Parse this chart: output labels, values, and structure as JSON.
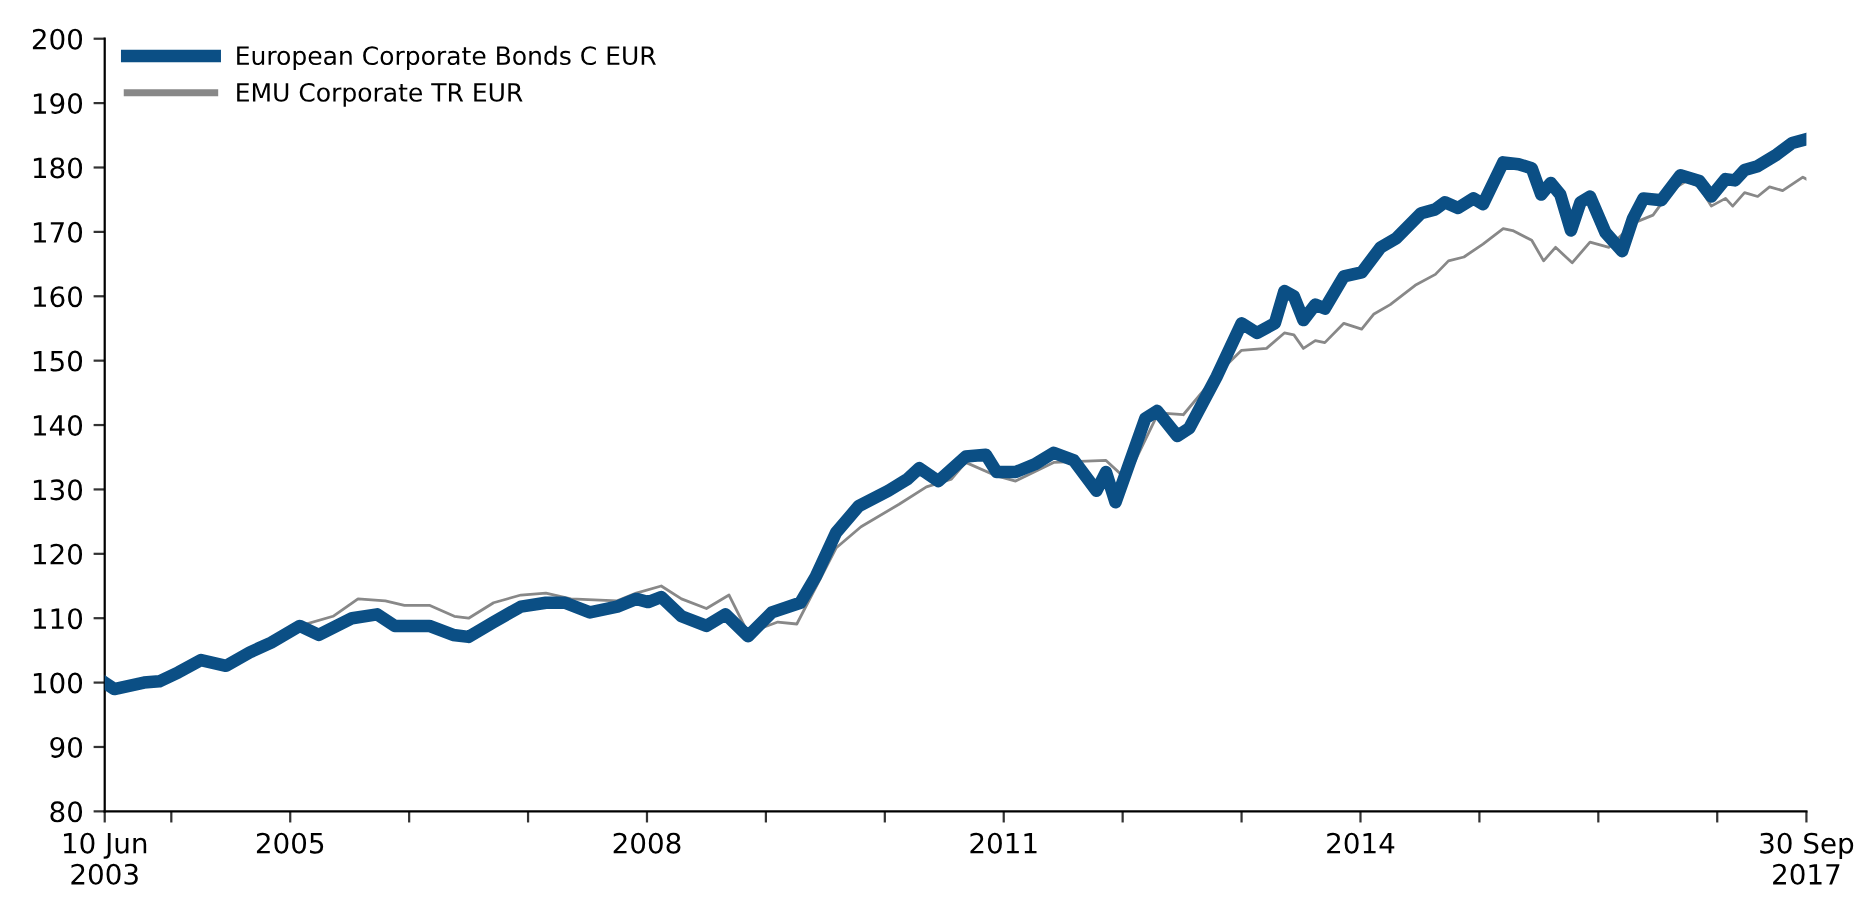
{
  "chart_data": {
    "type": "line",
    "ylim": [
      80,
      200
    ],
    "yticks": [
      80,
      90,
      100,
      110,
      120,
      130,
      140,
      150,
      160,
      170,
      180,
      190,
      200
    ],
    "xlim": [
      2003.44,
      2017.75
    ],
    "xticks": [
      {
        "value": 2003.44,
        "label": "10 Jun\n2003"
      },
      {
        "value": 2004,
        "label": null
      },
      {
        "value": 2005,
        "label": "2005"
      },
      {
        "value": 2006,
        "label": null
      },
      {
        "value": 2007,
        "label": null
      },
      {
        "value": 2008,
        "label": "2008"
      },
      {
        "value": 2009,
        "label": null
      },
      {
        "value": 2010,
        "label": null
      },
      {
        "value": 2011,
        "label": "2011"
      },
      {
        "value": 2012,
        "label": null
      },
      {
        "value": 2013,
        "label": null
      },
      {
        "value": 2014,
        "label": "2014"
      },
      {
        "value": 2015,
        "label": null
      },
      {
        "value": 2016,
        "label": null
      },
      {
        "value": 2017,
        "label": null
      },
      {
        "value": 2017.75,
        "label": "30 Sep\n2017"
      }
    ],
    "grid": false,
    "legend": "top left",
    "marker": "none",
    "line_style": "solid",
    "series": [
      {
        "name": "European Corporate Bonds C EUR",
        "color": "#0b4f85",
        "x": [
          2003.44,
          2003.52,
          2003.77,
          2003.9,
          2004.06,
          2004.25,
          2004.46,
          2004.66,
          2004.84,
          2005.08,
          2005.24,
          2005.52,
          2005.73,
          2005.88,
          2006.17,
          2006.37,
          2006.5,
          2006.71,
          2006.94,
          2007.15,
          2007.31,
          2007.52,
          2007.75,
          2007.91,
          2008.01,
          2008.12,
          2008.29,
          2008.5,
          2008.66,
          2008.85,
          2009.05,
          2009.29,
          2009.42,
          2009.59,
          2009.78,
          2010.03,
          2010.19,
          2010.29,
          2010.45,
          2010.68,
          2010.85,
          2010.94,
          2011.1,
          2011.26,
          2011.42,
          2011.59,
          2011.78,
          2011.86,
          2011.94,
          2012.19,
          2012.29,
          2012.46,
          2012.56,
          2012.79,
          2013.0,
          2013.13,
          2013.28,
          2013.36,
          2013.44,
          2013.52,
          2013.62,
          2013.7,
          2013.86,
          2014.01,
          2014.17,
          2014.3,
          2014.51,
          2014.63,
          2014.71,
          2014.82,
          2014.95,
          2015.03,
          2015.2,
          2015.33,
          2015.44,
          2015.52,
          2015.6,
          2015.68,
          2015.77,
          2015.85,
          2015.93,
          2016.06,
          2016.2,
          2016.29,
          2016.38,
          2016.53,
          2016.69,
          2016.85,
          2016.95,
          2017.07,
          2017.15,
          2017.23,
          2017.34,
          2017.5,
          2017.63,
          2017.75
        ],
        "values": [
          100,
          99,
          100,
          100.2,
          101.6,
          103.5,
          102.6,
          104.7,
          106.2,
          108.8,
          107.4,
          110,
          110.6,
          108.8,
          108.8,
          107.4,
          107.1,
          109.4,
          111.8,
          112.4,
          112.4,
          110.9,
          111.8,
          113,
          112.5,
          113.3,
          110.3,
          108.8,
          110.6,
          107.2,
          110.9,
          112.4,
          116.5,
          123.3,
          127.4,
          129.8,
          131.6,
          133.3,
          131.3,
          135.1,
          135.4,
          132.7,
          132.7,
          133.9,
          135.7,
          134.5,
          129.8,
          132.7,
          128,
          141,
          142.2,
          138.3,
          139.5,
          147.5,
          155.8,
          154.3,
          155.8,
          160.8,
          160,
          156.3,
          158.7,
          158.1,
          163.1,
          163.7,
          167.6,
          169,
          172.9,
          173.5,
          174.6,
          173.7,
          175.2,
          174.3,
          180.8,
          180.5,
          179.9,
          175.8,
          177.6,
          175.8,
          170.2,
          174.6,
          175.5,
          169.9,
          167,
          172,
          175.2,
          174.9,
          178.8,
          177.9,
          175.5,
          178.2,
          178,
          179.6,
          180.2,
          182,
          183.8,
          184.4
        ]
      },
      {
        "name": "EMU Corporate TR EUR",
        "color": "#888888",
        "x": [
          2003.44,
          2003.52,
          2003.77,
          2003.9,
          2004.06,
          2004.25,
          2004.46,
          2004.66,
          2004.84,
          2005.08,
          2005.36,
          2005.57,
          2005.8,
          2005.96,
          2006.17,
          2006.38,
          2006.5,
          2006.71,
          2006.94,
          2007.15,
          2007.36,
          2007.75,
          2007.91,
          2008.12,
          2008.29,
          2008.5,
          2008.69,
          2008.85,
          2009.1,
          2009.26,
          2009.59,
          2009.8,
          2010.12,
          2010.35,
          2010.56,
          2010.68,
          2010.94,
          2011.1,
          2011.42,
          2011.86,
          2012.03,
          2012.3,
          2012.51,
          2012.79,
          2013.0,
          2013.21,
          2013.36,
          2013.44,
          2013.52,
          2013.62,
          2013.7,
          2013.86,
          2014.01,
          2014.11,
          2014.25,
          2014.46,
          2014.63,
          2014.74,
          2014.87,
          2015.03,
          2015.2,
          2015.28,
          2015.44,
          2015.54,
          2015.64,
          2015.78,
          2015.93,
          2016.09,
          2016.3,
          2016.46,
          2016.61,
          2016.74,
          2016.85,
          2016.95,
          2017.07,
          2017.13,
          2017.23,
          2017.34,
          2017.44,
          2017.55,
          2017.72,
          2017.75
        ],
        "values": [
          100,
          99,
          99.5,
          99.8,
          101,
          103.2,
          102.6,
          104.5,
          106.2,
          108.8,
          110.3,
          113,
          112.7,
          112,
          112,
          110.3,
          110,
          112.4,
          113.6,
          113.9,
          113,
          112.7,
          113.9,
          115,
          113,
          111.5,
          113.6,
          107.7,
          109.4,
          109.1,
          120.9,
          124.2,
          127.7,
          130.4,
          131.6,
          134.2,
          132.1,
          131.3,
          134.2,
          134.5,
          131.6,
          141.9,
          141.6,
          147.8,
          151.6,
          151.9,
          154.3,
          154,
          151.9,
          153.1,
          152.8,
          155.8,
          154.9,
          157.2,
          158.7,
          161.7,
          163.4,
          165.5,
          166.1,
          168.1,
          170.5,
          170.2,
          168.7,
          165.5,
          167.6,
          165.2,
          168.4,
          167.6,
          171.4,
          172.6,
          176.4,
          177.9,
          177,
          174,
          175.2,
          174,
          176.1,
          175.5,
          177,
          176.4,
          178.5,
          178.2
        ]
      }
    ]
  }
}
